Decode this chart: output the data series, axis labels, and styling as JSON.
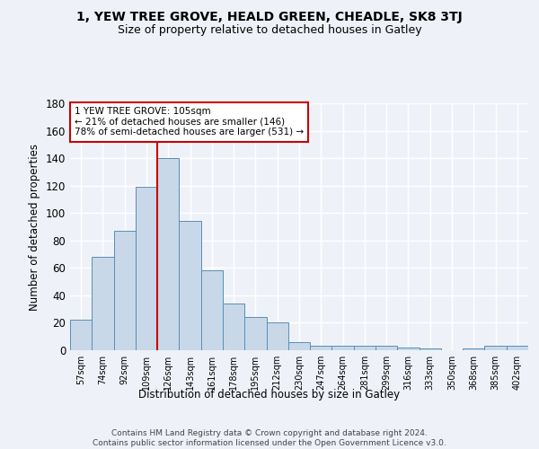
{
  "title": "1, YEW TREE GROVE, HEALD GREEN, CHEADLE, SK8 3TJ",
  "subtitle": "Size of property relative to detached houses in Gatley",
  "xlabel": "Distribution of detached houses by size in Gatley",
  "ylabel": "Number of detached properties",
  "bar_labels": [
    "57sqm",
    "74sqm",
    "92sqm",
    "109sqm",
    "126sqm",
    "143sqm",
    "161sqm",
    "178sqm",
    "195sqm",
    "212sqm",
    "230sqm",
    "247sqm",
    "264sqm",
    "281sqm",
    "299sqm",
    "316sqm",
    "333sqm",
    "350sqm",
    "368sqm",
    "385sqm",
    "402sqm"
  ],
  "bar_values": [
    22,
    68,
    87,
    119,
    140,
    94,
    58,
    34,
    24,
    20,
    6,
    3,
    3,
    3,
    3,
    2,
    1,
    0,
    1,
    3,
    3
  ],
  "bar_color": "#c8d8e8",
  "bar_edge_color": "#5b8db8",
  "background_color": "#eef2f8",
  "grid_color": "#ffffff",
  "vline_x": 3.5,
  "vline_color": "#cc0000",
  "annotation_text": "1 YEW TREE GROVE: 105sqm\n← 21% of detached houses are smaller (146)\n78% of semi-detached houses are larger (531) →",
  "annotation_box_color": "#ffffff",
  "annotation_box_edge": "#cc0000",
  "footnote": "Contains HM Land Registry data © Crown copyright and database right 2024.\nContains public sector information licensed under the Open Government Licence v3.0.",
  "ylim": [
    0,
    180
  ],
  "yticks": [
    0,
    20,
    40,
    60,
    80,
    100,
    120,
    140,
    160,
    180
  ]
}
